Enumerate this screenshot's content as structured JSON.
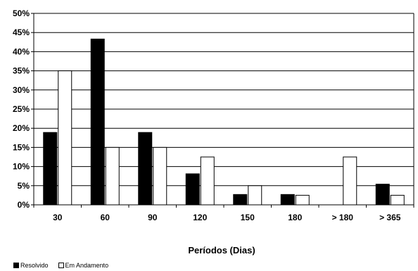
{
  "chart_data": {
    "type": "bar",
    "title": "",
    "xlabel": "Períodos (Dias)",
    "ylabel": "",
    "ylim": [
      0,
      50
    ],
    "yticks": [
      0,
      5,
      10,
      15,
      20,
      25,
      30,
      35,
      40,
      45,
      50
    ],
    "ytick_format": "%",
    "categories": [
      "30",
      "60",
      "90",
      "120",
      "150",
      "180",
      "> 180",
      "> 365"
    ],
    "series": [
      {
        "name": "Resolvido",
        "color": "#000000",
        "values": [
          18.9,
          43.3,
          18.9,
          8.1,
          2.7,
          2.7,
          0,
          5.4
        ]
      },
      {
        "name": "Em Andamento",
        "color": "#ffffff",
        "values": [
          35.0,
          15.0,
          15.0,
          12.5,
          5.0,
          2.5,
          12.5,
          2.5
        ]
      }
    ],
    "grid": true,
    "legend_position": "bottom-left"
  }
}
